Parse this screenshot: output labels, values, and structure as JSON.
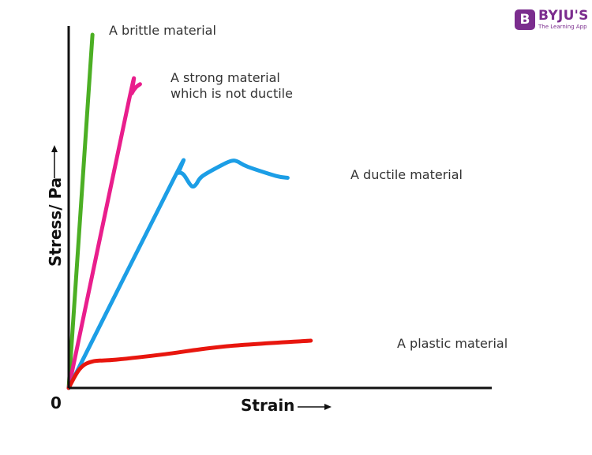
{
  "logo": {
    "text": "BYJU'S",
    "tagline": "The Learning App",
    "badge": "B",
    "color": "#7b2d8e"
  },
  "chart_data": {
    "type": "line",
    "title": "",
    "xlabel": "Strain",
    "ylabel": "Stress/ Pa",
    "origin_label": "0",
    "xlim": [
      0,
      100
    ],
    "ylim": [
      0,
      100
    ],
    "grid": false,
    "series": [
      {
        "name": "A brittle material",
        "color": "#4caf24",
        "points": [
          [
            0,
            0
          ],
          [
            7.5,
            100
          ]
        ]
      },
      {
        "name": "A strong material which is not ductile",
        "color": "#e91e8c",
        "points": [
          [
            0,
            0
          ],
          [
            18.9,
            81
          ],
          [
            19.9,
            83.4
          ],
          [
            21.2,
            85.1
          ],
          [
            22.5,
            86
          ]
        ]
      },
      {
        "name": "A ductile material",
        "color": "#1c9ee6",
        "points": [
          [
            0,
            0
          ],
          [
            33.4,
            59.7
          ],
          [
            34.7,
            60.9
          ],
          [
            36.2,
            60.4
          ],
          [
            38.2,
            57.7
          ],
          [
            39.2,
            57
          ],
          [
            40.2,
            57.7
          ],
          [
            42.2,
            60
          ],
          [
            48.7,
            63.3
          ],
          [
            51.4,
            64.3
          ],
          [
            53.2,
            64.1
          ],
          [
            56.5,
            62.6
          ],
          [
            65.4,
            60
          ],
          [
            69,
            59.5
          ]
        ]
      },
      {
        "name": "A plastic material",
        "color": "#e8160e",
        "points": [
          [
            0,
            0
          ],
          [
            3.5,
            5.4
          ],
          [
            7.5,
            7.5
          ],
          [
            14.9,
            8
          ],
          [
            29.8,
            9.5
          ],
          [
            49.7,
            11.8
          ],
          [
            76.3,
            13.4
          ]
        ]
      }
    ]
  }
}
